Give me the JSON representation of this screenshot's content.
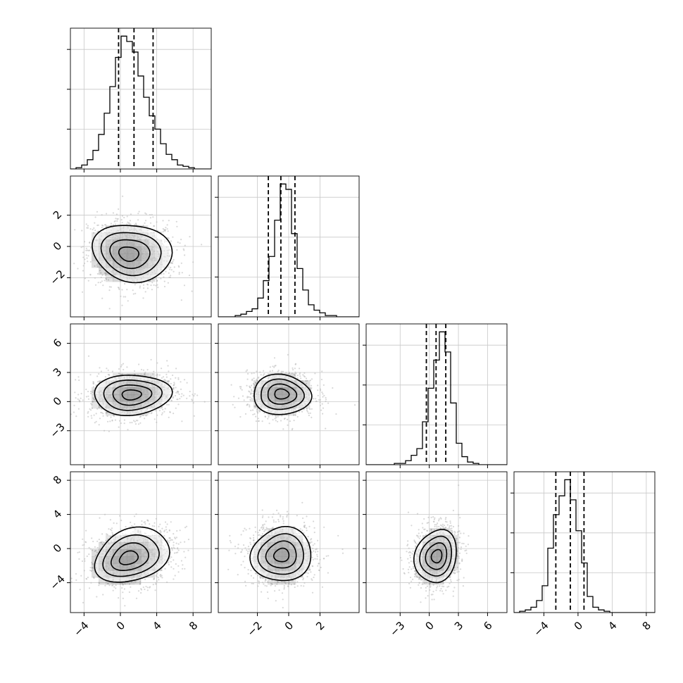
{
  "chart_data": {
    "type": "corner",
    "parameters": 4,
    "axes": [
      {
        "lim": [
          -5.5,
          10.0
        ],
        "ticks": [
          -4,
          0,
          4,
          8
        ],
        "tick_labels": [
          "−4",
          "0",
          "4",
          "8"
        ]
      },
      {
        "lim": [
          -4.5,
          4.5
        ],
        "ticks": [
          -2,
          0,
          2
        ],
        "tick_labels": [
          "−2",
          "0",
          "2"
        ]
      },
      {
        "lim": [
          -6.5,
          8.0
        ],
        "ticks": [
          -3,
          0,
          3,
          6
        ],
        "tick_labels": [
          "−3",
          "0",
          "3",
          "6"
        ]
      },
      {
        "lim": [
          -7.5,
          9.0
        ],
        "ticks": [
          -4,
          0,
          4,
          8
        ],
        "tick_labels": [
          "−4",
          "0",
          "4",
          "8"
        ]
      }
    ],
    "quantiles": [
      [
        -0.2,
        1.5,
        3.6
      ],
      [
        -1.3,
        -0.5,
        0.4
      ],
      [
        -0.3,
        0.7,
        1.7
      ],
      [
        -2.6,
        -0.9,
        0.7
      ]
    ],
    "histograms": [
      {
        "bin_start": -5.5,
        "bin_width": 0.62,
        "counts": [
          0,
          0.01,
          0.03,
          0.07,
          0.14,
          0.26,
          0.42,
          0.62,
          0.84,
          1.0,
          0.96,
          0.88,
          0.7,
          0.54,
          0.4,
          0.3,
          0.19,
          0.11,
          0.07,
          0.03,
          0.02,
          0.01,
          0,
          0,
          0
        ]
      },
      {
        "bin_start": -4.5,
        "bin_width": 0.36,
        "counts": [
          0,
          0,
          0,
          0.01,
          0.02,
          0.04,
          0.06,
          0.14,
          0.27,
          0.45,
          0.72,
          0.99,
          0.95,
          0.62,
          0.36,
          0.2,
          0.09,
          0.05,
          0.03,
          0.01,
          0.01,
          0,
          0,
          0,
          0
        ]
      },
      {
        "bin_start": -6.5,
        "bin_width": 0.58,
        "counts": [
          0,
          0,
          0,
          0,
          0,
          0.01,
          0.01,
          0.03,
          0.07,
          0.12,
          0.32,
          0.57,
          0.78,
          0.99,
          0.84,
          0.46,
          0.16,
          0.06,
          0.02,
          0.01,
          0,
          0,
          0,
          0,
          0
        ]
      },
      {
        "bin_start": -7.5,
        "bin_width": 0.66,
        "counts": [
          0,
          0.01,
          0.02,
          0.04,
          0.09,
          0.2,
          0.48,
          0.73,
          0.87,
          0.99,
          0.84,
          0.61,
          0.37,
          0.12,
          0.04,
          0.02,
          0.01,
          0,
          0,
          0,
          0,
          0,
          0,
          0,
          0
        ]
      }
    ],
    "pairs": [
      {
        "row": 1,
        "col": 0,
        "center": [
          1.3,
          -0.4
        ],
        "sd": [
          2.1,
          0.95
        ],
        "rho": -0.1,
        "mode": [
          0.8,
          -0.5
        ]
      },
      {
        "row": 2,
        "col": 0,
        "center": [
          1.3,
          0.7
        ],
        "sd": [
          2.1,
          1.05
        ],
        "rho": 0.12,
        "mode": [
          1.2,
          0.7
        ]
      },
      {
        "row": 2,
        "col": 1,
        "center": [
          -0.45,
          0.7
        ],
        "sd": [
          0.95,
          1.0
        ],
        "rho": 0.0,
        "mode": [
          -0.45,
          0.8
        ]
      },
      {
        "row": 3,
        "col": 0,
        "center": [
          1.3,
          -0.8
        ],
        "sd": [
          2.1,
          1.55
        ],
        "rho": 0.22,
        "mode": [
          0.8,
          -1.2
        ]
      },
      {
        "row": 3,
        "col": 1,
        "center": [
          -0.45,
          -0.7
        ],
        "sd": [
          0.95,
          1.6
        ],
        "rho": 0.0,
        "mode": [
          -0.45,
          -0.8
        ]
      },
      {
        "row": 3,
        "col": 2,
        "center": [
          0.7,
          -0.9
        ],
        "sd": [
          1.05,
          1.6
        ],
        "rho": 0.15,
        "mode": [
          0.8,
          -0.9
        ]
      }
    ],
    "contour_levels_sigma": [
      0.5,
      1.0,
      1.5,
      2.0
    ],
    "grid": true,
    "colors": {
      "hist": "#000000",
      "points": "#b8b8b8",
      "density": "#000000",
      "grid": "#c8c8c8"
    }
  }
}
